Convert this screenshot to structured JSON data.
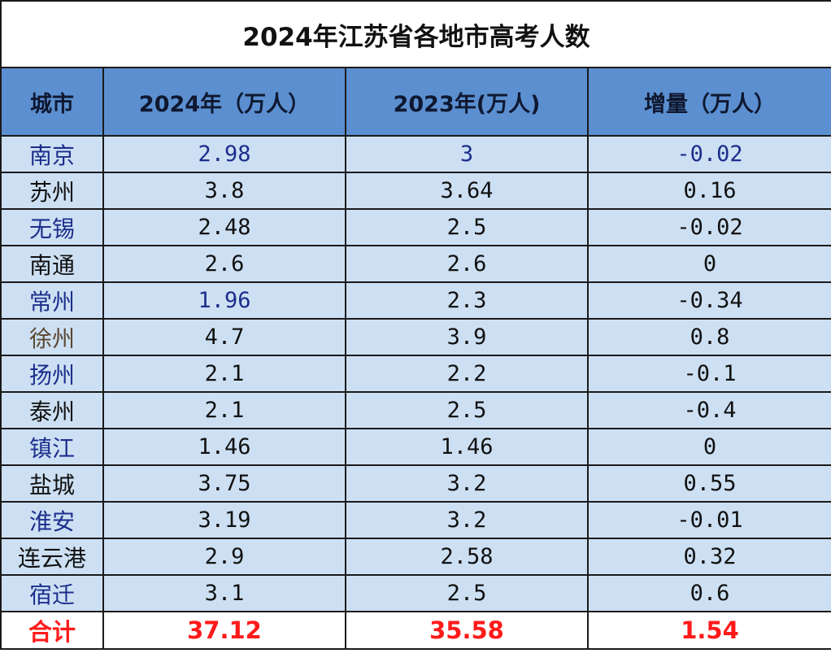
{
  "title": "2024年江苏省各地市高考人数",
  "headers": {
    "city": "城市",
    "y2024": "2024年（万人）",
    "y2023": "2023年(万人)",
    "delta": "增量（万人）"
  },
  "rows": [
    {
      "city": "南京",
      "y2024": "2.98",
      "y2023": "3",
      "delta": "-0.02"
    },
    {
      "city": "苏州",
      "y2024": "3.8",
      "y2023": "3.64",
      "delta": "0.16"
    },
    {
      "city": "无锡",
      "y2024": "2.48",
      "y2023": "2.5",
      "delta": "-0.02"
    },
    {
      "city": "南通",
      "y2024": "2.6",
      "y2023": "2.6",
      "delta": "0"
    },
    {
      "city": "常州",
      "y2024": "1.96",
      "y2023": "2.3",
      "delta": "-0.34"
    },
    {
      "city": "徐州",
      "y2024": "4.7",
      "y2023": "3.9",
      "delta": "0.8"
    },
    {
      "city": "扬州",
      "y2024": "2.1",
      "y2023": "2.2",
      "delta": "-0.1"
    },
    {
      "city": "泰州",
      "y2024": "2.1",
      "y2023": "2.5",
      "delta": "-0.4"
    },
    {
      "city": "镇江",
      "y2024": "1.46",
      "y2023": "1.46",
      "delta": "0"
    },
    {
      "city": "盐城",
      "y2024": "3.75",
      "y2023": "3.2",
      "delta": "0.55"
    },
    {
      "city": "淮安",
      "y2024": "3.19",
      "y2023": "3.2",
      "delta": "-0.01"
    },
    {
      "city": "连云港",
      "y2024": "2.9",
      "y2023": "2.58",
      "delta": "0.32"
    },
    {
      "city": "宿迁",
      "y2024": "3.1",
      "y2023": "2.5",
      "delta": "0.6"
    }
  ],
  "total": {
    "label": "合计",
    "y2024": "37.12",
    "y2023": "35.58",
    "delta": "1.54"
  },
  "colors": {
    "header_bg": "#5b8fd0",
    "row_bg": "#cde0f3",
    "total_text": "#ff1a1a",
    "blue_text": "#1c2e8c"
  }
}
